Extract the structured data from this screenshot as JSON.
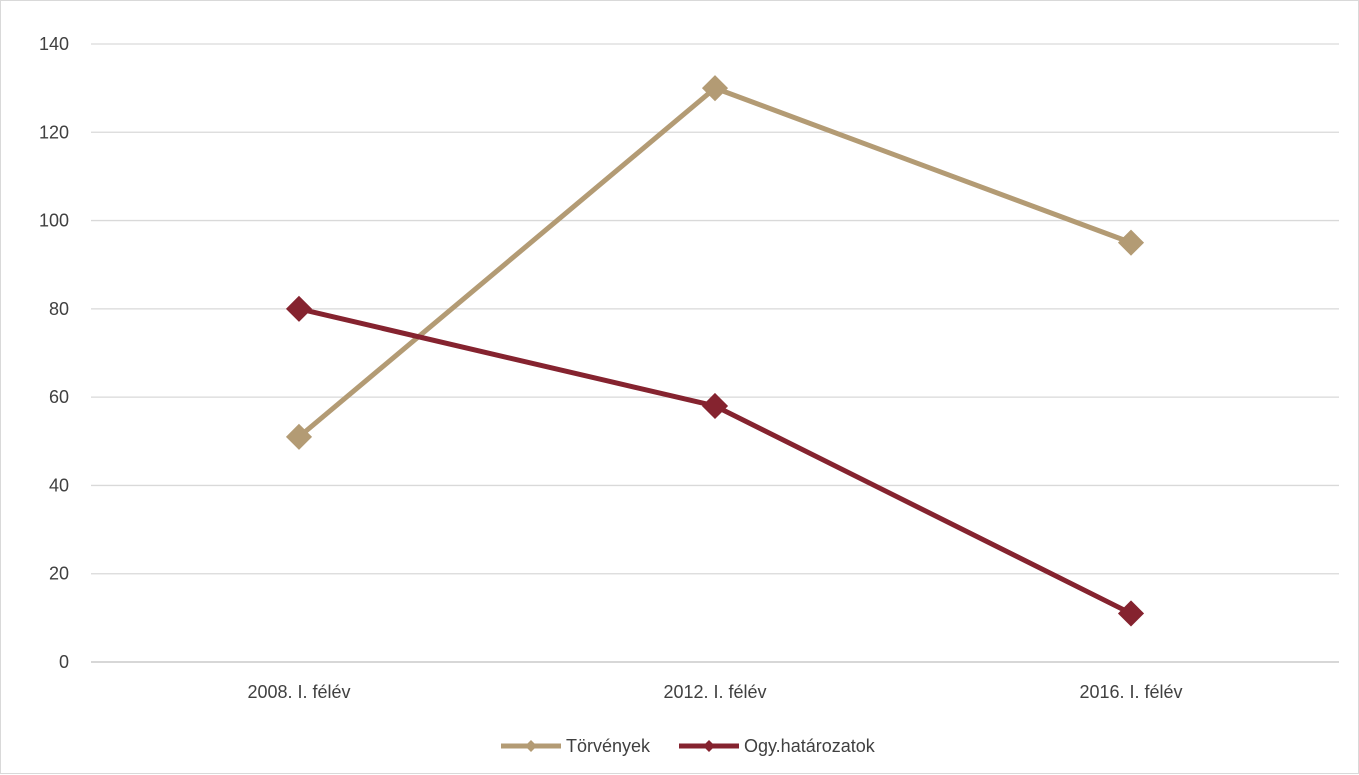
{
  "chart_data": {
    "type": "line",
    "title": "",
    "xlabel": "",
    "ylabel": "",
    "categories": [
      "2008. I. félév",
      "2012. I. félév",
      "2016. I. félév"
    ],
    "ylim": [
      0,
      140
    ],
    "yticks": [
      0,
      20,
      40,
      60,
      80,
      100,
      120,
      140
    ],
    "grid": true,
    "legend_position": "bottom",
    "marker": "diamond",
    "series": [
      {
        "name": "Törvények",
        "values": [
          51,
          130,
          95
        ],
        "color": "#b39b74"
      },
      {
        "name": "Ogy.határozatok",
        "values": [
          80,
          58,
          11
        ],
        "color": "#85232f"
      }
    ]
  }
}
